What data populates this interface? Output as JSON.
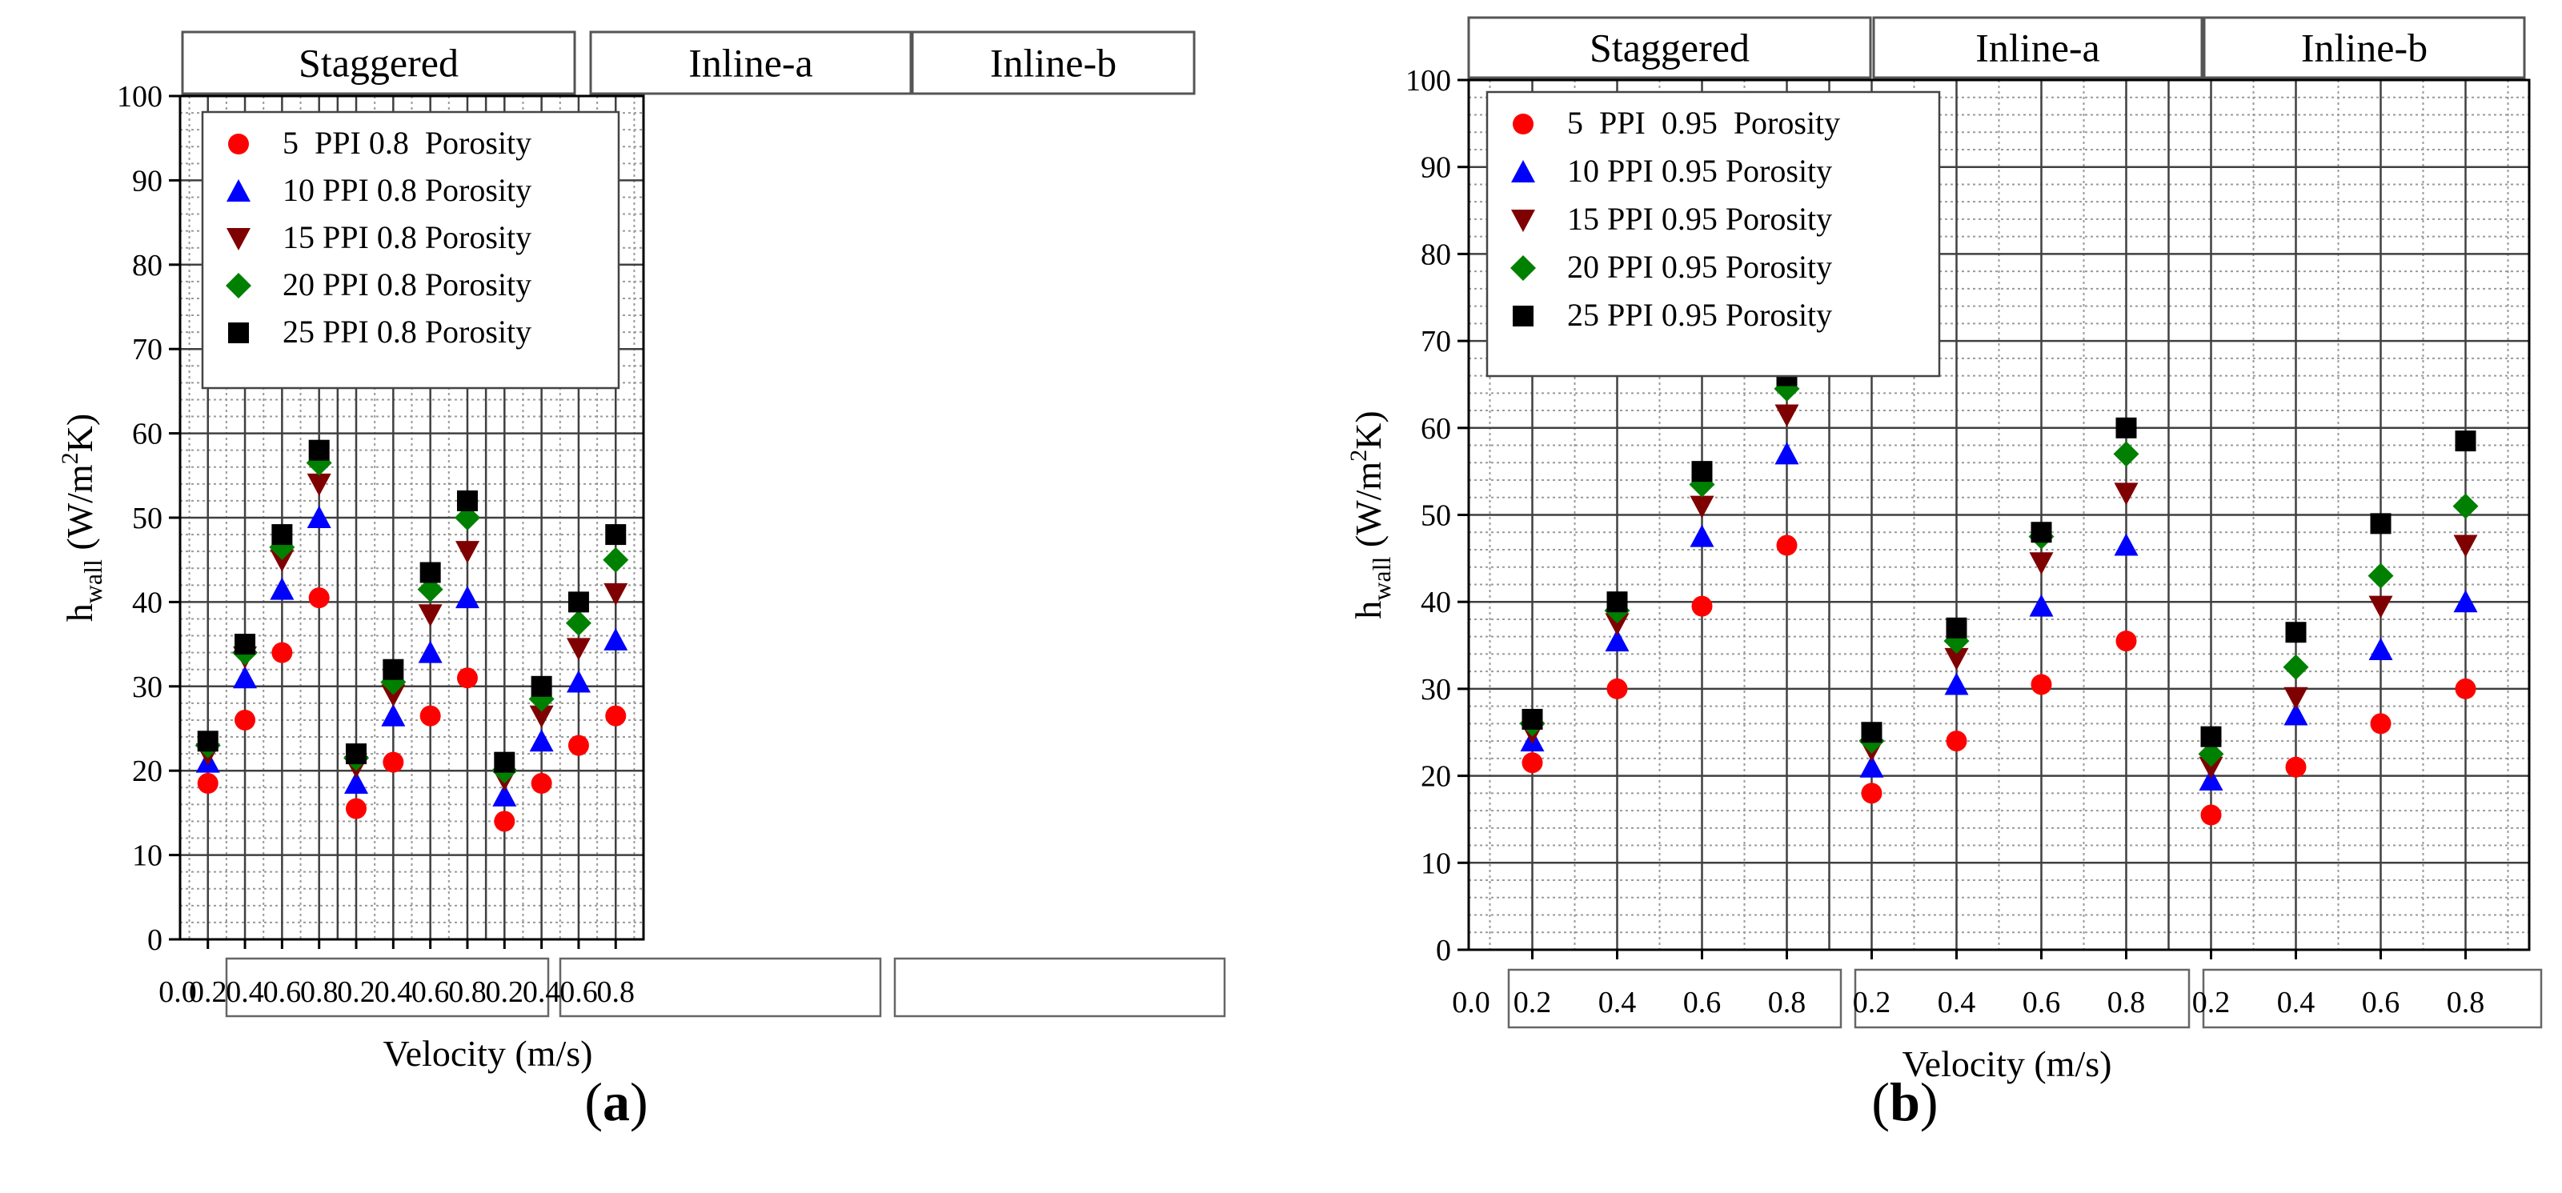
{
  "figure": {
    "panels": [
      "(a)",
      "(b)"
    ],
    "panel_letters": [
      "a",
      "b"
    ]
  },
  "chart_data": [
    {
      "type": "scatter",
      "panel": "(a)",
      "ylabel_main": "h",
      "ylabel_sub": "wall",
      "ylabel_unit_pre": " (W/m",
      "ylabel_unit_sup": "2",
      "ylabel_unit_post": "K)",
      "xlabel": "Velocity (m/s)",
      "ylim": [
        0,
        100
      ],
      "yticks": [
        "0",
        "10",
        "20",
        "30",
        "40",
        "50",
        "60",
        "70",
        "80",
        "90",
        "100"
      ],
      "x_origin_label": "0.0",
      "groups": [
        {
          "name": "Staggered",
          "x_labels": [
            "0.2",
            "0.4",
            "0.6",
            "0.8"
          ]
        },
        {
          "name": "Inline-a",
          "x_labels": [
            "0.2",
            "0.4",
            "0.6",
            "0.8"
          ]
        },
        {
          "name": "Inline-b",
          "x_labels": [
            "0.2",
            "0.4",
            "0.6",
            "0.8"
          ]
        }
      ],
      "velocities": [
        0.25,
        0.4,
        0.6,
        0.8
      ],
      "series": [
        {
          "name": "5  PPI 0.8  Porosity",
          "marker": "circle",
          "color": "#ff0000",
          "values": [
            [
              18.5,
              26,
              34,
              40.5
            ],
            [
              15.5,
              21,
              26.5,
              31
            ],
            [
              14,
              18.5,
              23,
              26.5
            ]
          ]
        },
        {
          "name": "10 PPI 0.8 Porosity",
          "marker": "triangle-up",
          "color": "#0000ff",
          "values": [
            [
              21,
              31,
              41.5,
              50
            ],
            [
              18.5,
              26.5,
              34,
              40.5
            ],
            [
              17,
              23.5,
              30.5,
              35.5
            ]
          ]
        },
        {
          "name": "15 PPI 0.8 Porosity",
          "marker": "triangle-down",
          "color": "#7f0000",
          "values": [
            [
              22,
              33.5,
              45,
              54
            ],
            [
              20.5,
              29,
              38.5,
              46
            ],
            [
              19,
              26.5,
              34.5,
              41
            ]
          ]
        },
        {
          "name": "20 PPI 0.8 Porosity",
          "marker": "diamond",
          "color": "#008000",
          "values": [
            [
              23,
              34,
              46.5,
              56.5
            ],
            [
              21.5,
              30.5,
              41.5,
              50
            ],
            [
              20,
              28.5,
              37.5,
              45
            ]
          ]
        },
        {
          "name": "25 PPI 0.8 Porosity",
          "marker": "square",
          "color": "#000000",
          "values": [
            [
              23.5,
              35,
              48,
              58
            ],
            [
              22,
              32,
              43.5,
              52
            ],
            [
              21,
              30,
              40,
              48
            ]
          ]
        }
      ]
    },
    {
      "type": "scatter",
      "panel": "(b)",
      "ylabel_main": "h",
      "ylabel_sub": "wall",
      "ylabel_unit_pre": " (W/m",
      "ylabel_unit_sup": "2",
      "ylabel_unit_post": "K)",
      "xlabel": "Velocity (m/s)",
      "ylim": [
        0,
        100
      ],
      "yticks": [
        "0",
        "10",
        "20",
        "30",
        "40",
        "50",
        "60",
        "70",
        "80",
        "90",
        "100"
      ],
      "x_origin_label": "0.0",
      "groups": [
        {
          "name": "Staggered",
          "x_labels": [
            "0.2",
            "0.4",
            "0.6",
            "0.8"
          ]
        },
        {
          "name": "Inline-a",
          "x_labels": [
            "0.2",
            "0.4",
            "0.6",
            "0.8"
          ]
        },
        {
          "name": "Inline-b",
          "x_labels": [
            "0.2",
            "0.4",
            "0.6",
            "0.8"
          ]
        }
      ],
      "velocities": [
        0.25,
        0.4,
        0.6,
        0.8
      ],
      "series": [
        {
          "name": "5  PPI  0.95  Porosity",
          "marker": "circle",
          "color": "#ff0000",
          "values": [
            [
              21.5,
              30,
              39.5,
              46.5
            ],
            [
              18,
              24,
              30.5,
              35.5
            ],
            [
              15.5,
              21,
              26,
              30
            ]
          ]
        },
        {
          "name": "10 PPI 0.95 Porosity",
          "marker": "triangle-up",
          "color": "#0000ff",
          "values": [
            [
              24,
              35.5,
              47.5,
              57
            ],
            [
              21,
              30.5,
              39.5,
              46.5
            ],
            [
              19.5,
              27,
              34.5,
              40
            ]
          ]
        },
        {
          "name": "15 PPI 0.95 Porosity",
          "marker": "triangle-down",
          "color": "#7f0000",
          "values": [
            [
              25,
              37.5,
              51,
              61.5
            ],
            [
              23,
              33.5,
              44.5,
              52.5
            ],
            [
              21,
              29,
              39.5,
              46.5
            ]
          ]
        },
        {
          "name": "20 PPI 0.95 Porosity",
          "marker": "diamond",
          "color": "#008000",
          "values": [
            [
              26,
              39,
              53.5,
              64.5
            ],
            [
              24,
              35.5,
              47.5,
              57
            ],
            [
              22.5,
              32.5,
              43,
              51
            ]
          ]
        },
        {
          "name": "25 PPI 0.95 Porosity",
          "marker": "square",
          "color": "#000000",
          "values": [
            [
              26.5,
              40,
              55,
              66
            ],
            [
              25,
              37,
              48,
              60
            ],
            [
              24.5,
              36.5,
              49,
              58.5
            ]
          ]
        }
      ]
    }
  ]
}
